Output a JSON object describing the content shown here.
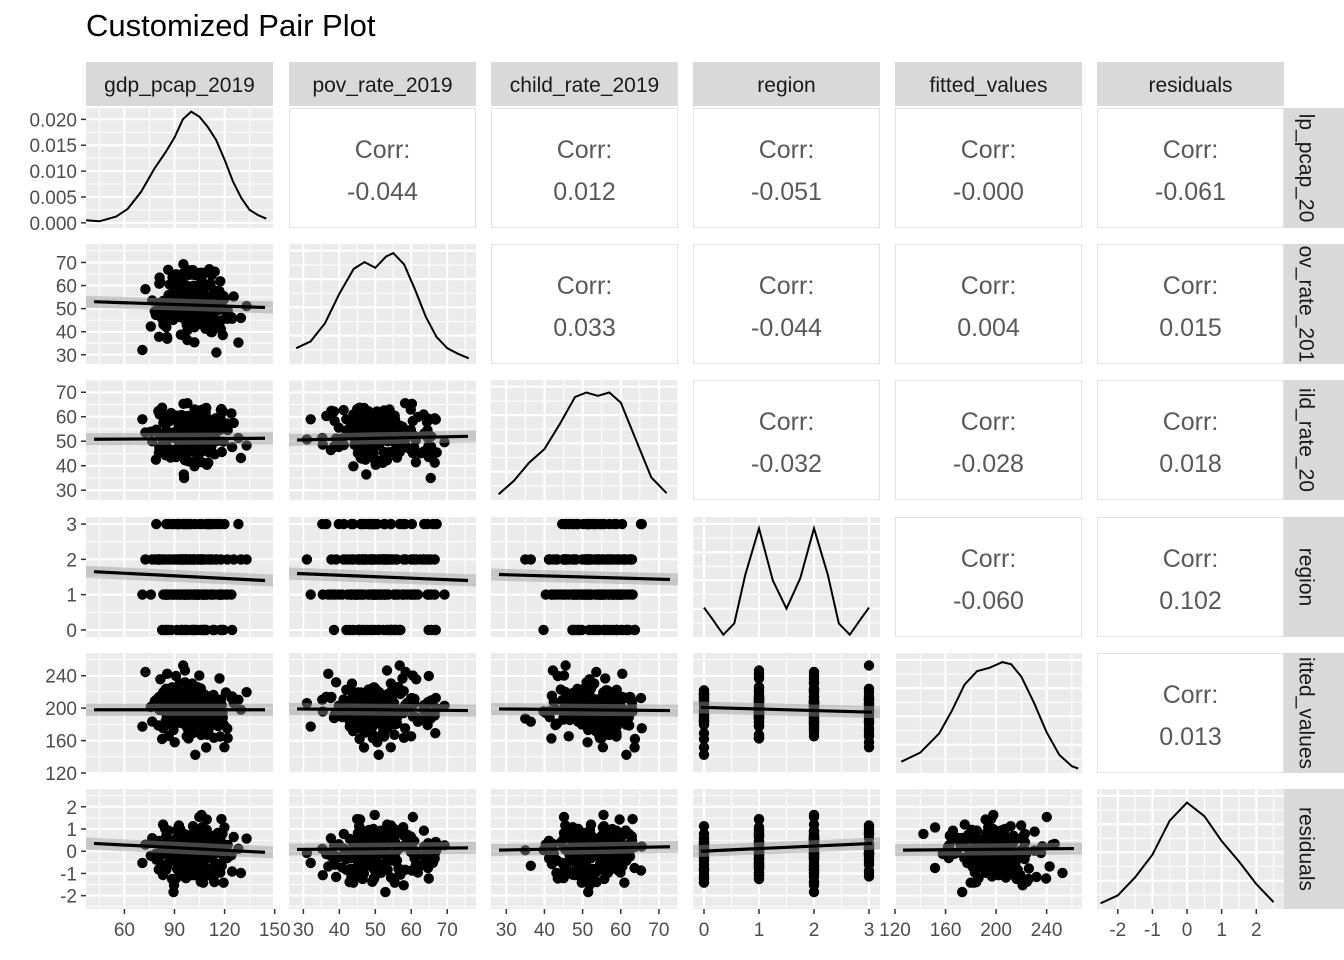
{
  "chart_data": {
    "type": "pair-plot",
    "title": "Customized Pair Plot",
    "grid": true,
    "variables": [
      "gdp_pcap_2019",
      "pov_rate_2019",
      "child_rate_2019",
      "region",
      "fitted_values",
      "residuals"
    ],
    "row_strip_labels": [
      "lp_pcap_20",
      "ov_rate_201",
      "ild_rate_20",
      "region",
      "itted_values",
      "residuals"
    ],
    "axes": {
      "gdp_pcap_2019": {
        "range": [
          37,
          149
        ],
        "ticks": [
          60,
          90,
          120,
          150
        ],
        "tick_labels": [
          "60",
          "90",
          "120",
          "150"
        ]
      },
      "pov_rate_2019": {
        "range": [
          26,
          78
        ],
        "ticks": [
          30,
          40,
          50,
          60,
          70
        ],
        "tick_labels": [
          "30",
          "40",
          "50",
          "60",
          "70"
        ]
      },
      "child_rate_2019": {
        "range": [
          26,
          75
        ],
        "ticks": [
          30,
          40,
          50,
          60,
          70
        ],
        "tick_labels": [
          "30",
          "40",
          "50",
          "60",
          "70"
        ]
      },
      "region": {
        "range": [
          -0.2,
          3.2
        ],
        "ticks": [
          0,
          1,
          2,
          3
        ],
        "tick_labels": [
          "0",
          "1",
          "2",
          "3"
        ]
      },
      "fitted_values": {
        "range": [
          120,
          268
        ],
        "ticks": [
          120,
          160,
          200,
          240
        ],
        "tick_labels": [
          "120",
          "160",
          "200",
          "240"
        ]
      },
      "residuals": {
        "range": [
          -2.6,
          2.8
        ],
        "ticks": [
          -2,
          -1,
          0,
          1,
          2
        ],
        "tick_labels": [
          "-2",
          "-1",
          "0",
          "1",
          "2"
        ]
      }
    },
    "density_axis": {
      "range": [
        -0.001,
        0.0222
      ],
      "ticks": [
        0,
        0.005,
        0.01,
        0.015,
        0.02
      ],
      "tick_labels": [
        "0.000",
        "0.005",
        "0.010",
        "0.015",
        "0.020"
      ]
    },
    "correlations": [
      {
        "row": "gdp_pcap_2019",
        "col": "pov_rate_2019",
        "label": "Corr:",
        "value": "-0.044"
      },
      {
        "row": "gdp_pcap_2019",
        "col": "child_rate_2019",
        "label": "Corr:",
        "value": "0.012"
      },
      {
        "row": "gdp_pcap_2019",
        "col": "region",
        "label": "Corr:",
        "value": "-0.051"
      },
      {
        "row": "gdp_pcap_2019",
        "col": "fitted_values",
        "label": "Corr:",
        "value": "-0.000"
      },
      {
        "row": "gdp_pcap_2019",
        "col": "residuals",
        "label": "Corr:",
        "value": "-0.061"
      },
      {
        "row": "pov_rate_2019",
        "col": "child_rate_2019",
        "label": "Corr:",
        "value": "0.033"
      },
      {
        "row": "pov_rate_2019",
        "col": "region",
        "label": "Corr:",
        "value": "-0.044"
      },
      {
        "row": "pov_rate_2019",
        "col": "fitted_values",
        "label": "Corr:",
        "value": "0.004"
      },
      {
        "row": "pov_rate_2019",
        "col": "residuals",
        "label": "Corr:",
        "value": "0.015"
      },
      {
        "row": "child_rate_2019",
        "col": "region",
        "label": "Corr:",
        "value": "-0.032"
      },
      {
        "row": "child_rate_2019",
        "col": "fitted_values",
        "label": "Corr:",
        "value": "-0.028"
      },
      {
        "row": "child_rate_2019",
        "col": "residuals",
        "label": "Corr:",
        "value": "0.018"
      },
      {
        "row": "region",
        "col": "fitted_values",
        "label": "Corr:",
        "value": "-0.060"
      },
      {
        "row": "region",
        "col": "residuals",
        "label": "Corr:",
        "value": "0.102"
      },
      {
        "row": "fitted_values",
        "col": "residuals",
        "label": "Corr:",
        "value": "0.013"
      }
    ],
    "densities": [
      {
        "variable": "gdp_pcap_2019",
        "x": [
          37,
          45,
          55,
          62,
          70,
          78,
          85,
          90,
          95,
          100,
          105,
          110,
          115,
          120,
          125,
          130,
          135,
          140,
          145
        ],
        "y": [
          0.0005,
          0.0003,
          0.0012,
          0.0027,
          0.006,
          0.0105,
          0.0138,
          0.0165,
          0.02,
          0.0215,
          0.0205,
          0.0185,
          0.016,
          0.0122,
          0.008,
          0.0048,
          0.0025,
          0.0015,
          0.0008
        ]
      },
      {
        "variable": "pov_rate_2019",
        "x": [
          28,
          32,
          36,
          40,
          44,
          47,
          50,
          53,
          55,
          58,
          61,
          64,
          67,
          70,
          73,
          76
        ],
        "y": [
          0.14,
          0.2,
          0.36,
          0.62,
          0.84,
          0.9,
          0.85,
          0.95,
          0.98,
          0.88,
          0.66,
          0.42,
          0.24,
          0.14,
          0.09,
          0.05
        ]
      },
      {
        "variable": "child_rate_2019",
        "x": [
          28,
          32,
          36,
          40,
          44,
          48,
          51,
          54,
          57,
          60,
          64,
          68,
          72
        ],
        "y": [
          0.05,
          0.17,
          0.33,
          0.45,
          0.67,
          0.91,
          0.95,
          0.92,
          0.95,
          0.86,
          0.53,
          0.2,
          0.06
        ]
      },
      {
        "variable": "region",
        "x": [
          0,
          0.15,
          0.35,
          0.55,
          0.75,
          1.0,
          1.25,
          1.5,
          1.75,
          2.0,
          2.25,
          2.45,
          2.65,
          2.85,
          3.0
        ],
        "y": [
          0.26,
          0.16,
          0.02,
          0.12,
          0.55,
          0.96,
          0.5,
          0.25,
          0.52,
          0.96,
          0.55,
          0.12,
          0.02,
          0.16,
          0.26
        ]
      },
      {
        "variable": "fitted_values",
        "x": [
          125,
          140,
          155,
          165,
          175,
          185,
          195,
          205,
          212,
          220,
          230,
          240,
          250,
          260,
          265
        ],
        "y": [
          0.1,
          0.18,
          0.35,
          0.55,
          0.78,
          0.9,
          0.93,
          0.98,
          0.96,
          0.85,
          0.62,
          0.36,
          0.16,
          0.06,
          0.04
        ]
      },
      {
        "variable": "residuals",
        "x": [
          -2.5,
          -2.0,
          -1.5,
          -1.0,
          -0.5,
          0.0,
          0.5,
          1.0,
          1.5,
          2.0,
          2.5
        ],
        "y": [
          0.05,
          0.12,
          0.28,
          0.48,
          0.78,
          0.94,
          0.82,
          0.6,
          0.42,
          0.22,
          0.06
        ]
      }
    ],
    "regression_lines": [
      {
        "row": "pov_rate_2019",
        "col": "gdp_pcap_2019",
        "y_at_xmin": 53,
        "y_at_xmax": 50.5
      },
      {
        "row": "child_rate_2019",
        "col": "gdp_pcap_2019",
        "y_at_xmin": 50.8,
        "y_at_xmax": 51.2
      },
      {
        "row": "child_rate_2019",
        "col": "pov_rate_2019",
        "y_at_xmin": 50.5,
        "y_at_xmax": 52
      },
      {
        "row": "region",
        "col": "gdp_pcap_2019",
        "y_at_xmin": 1.65,
        "y_at_xmax": 1.4
      },
      {
        "row": "region",
        "col": "pov_rate_2019",
        "y_at_xmin": 1.6,
        "y_at_xmax": 1.4
      },
      {
        "row": "region",
        "col": "child_rate_2019",
        "y_at_xmin": 1.57,
        "y_at_xmax": 1.43
      },
      {
        "row": "fitted_values",
        "col": "gdp_pcap_2019",
        "y_at_xmin": 198,
        "y_at_xmax": 198
      },
      {
        "row": "fitted_values",
        "col": "pov_rate_2019",
        "y_at_xmin": 199,
        "y_at_xmax": 197
      },
      {
        "row": "fitted_values",
        "col": "child_rate_2019",
        "y_at_xmin": 199,
        "y_at_xmax": 197
      },
      {
        "row": "fitted_values",
        "col": "region",
        "y_at_xmin": 201,
        "y_at_xmax": 195
      },
      {
        "row": "residuals",
        "col": "gdp_pcap_2019",
        "y_at_xmin": 0.35,
        "y_at_xmax": -0.05
      },
      {
        "row": "residuals",
        "col": "pov_rate_2019",
        "y_at_xmin": 0.08,
        "y_at_xmax": 0.15
      },
      {
        "row": "residuals",
        "col": "child_rate_2019",
        "y_at_xmin": 0.05,
        "y_at_xmax": 0.2
      },
      {
        "row": "residuals",
        "col": "region",
        "y_at_xmin": 0.0,
        "y_at_xmax": 0.35
      },
      {
        "row": "residuals",
        "col": "fitted_values",
        "y_at_xmin": 0.05,
        "y_at_xmax": 0.12
      }
    ],
    "scatter_note": "Scatter panels show ~200 observations per variable pair; individual points are not printed as values."
  }
}
